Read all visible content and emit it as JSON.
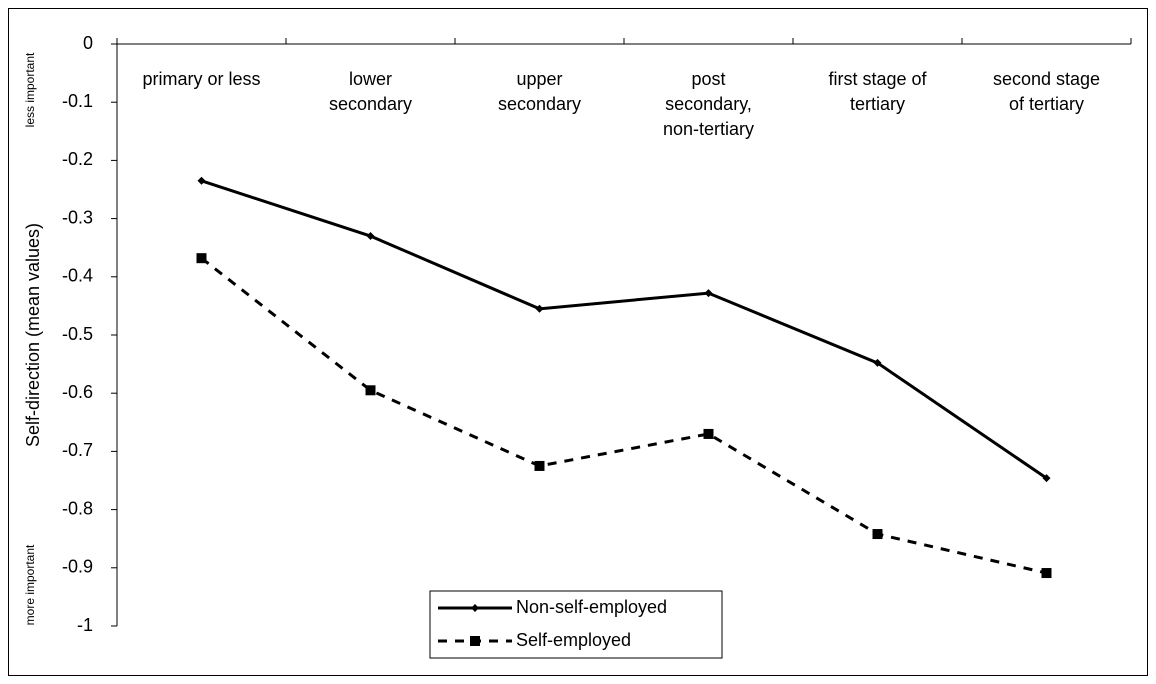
{
  "chart_data": {
    "type": "line",
    "ylabel": "Self-direction (mean values)",
    "annotations": [
      "less important",
      "more important"
    ],
    "categories": [
      [
        "primary or less"
      ],
      [
        "lower",
        "secondary"
      ],
      [
        "upper",
        "secondary"
      ],
      [
        "post",
        "secondary,",
        "non-tertiary"
      ],
      [
        "first stage of",
        "tertiary"
      ],
      [
        "second stage",
        "of tertiary"
      ]
    ],
    "series": [
      {
        "name": "Non-self-employed",
        "color": "#000000",
        "dash": "solid",
        "marker": "diamond",
        "values": [
          -0.235,
          -0.33,
          -0.455,
          -0.428,
          -0.548,
          -0.746
        ]
      },
      {
        "name": "Self-employed",
        "color": "#000000",
        "dash": "dashed",
        "marker": "square",
        "values": [
          -0.368,
          -0.595,
          -0.725,
          -0.67,
          -0.842,
          -0.909
        ]
      }
    ],
    "ylim": [
      -1,
      0
    ],
    "yticks": [
      0,
      -0.1,
      -0.2,
      -0.3,
      -0.4,
      -0.5,
      -0.6,
      -0.7,
      -0.8,
      -0.9,
      -1
    ],
    "legend": "bottom"
  }
}
